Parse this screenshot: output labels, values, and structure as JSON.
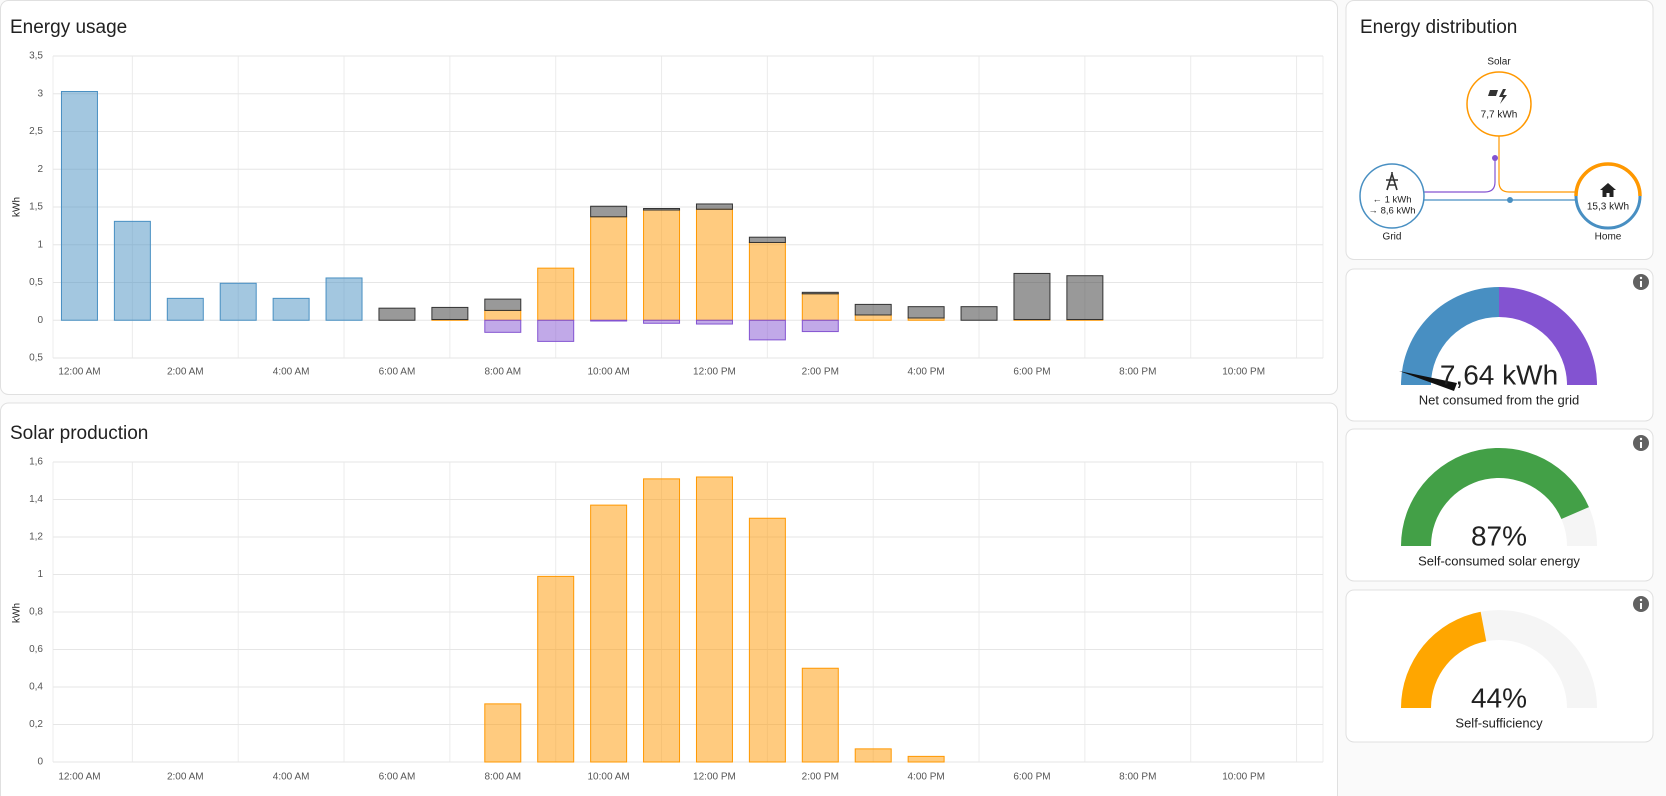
{
  "chart_data": [
    {
      "type": "bar",
      "title": "Energy usage",
      "y_label": "kWh",
      "categories": [
        "12:00 AM",
        null,
        "2:00 AM",
        null,
        "4:00 AM",
        null,
        "6:00 AM",
        null,
        "8:00 AM",
        null,
        "10:00 AM",
        null,
        "12:00 PM",
        null,
        "2:00 PM",
        null,
        "4:00 PM",
        null,
        "6:00 PM",
        null,
        "8:00 PM",
        null,
        "10:00 PM",
        null
      ],
      "series": [
        {
          "color": "#488fc2",
          "values": [
            3.03,
            1.31,
            0.29,
            0.49,
            0.29,
            0.56,
            0,
            0,
            0,
            0,
            0,
            0,
            0,
            0,
            0,
            0,
            0,
            0,
            0,
            0,
            0,
            0,
            0,
            0
          ]
        },
        {
          "color": "#ff9800",
          "values": [
            0,
            0,
            0,
            0,
            0,
            0,
            0,
            0.01,
            0.13,
            0.69,
            1.37,
            1.46,
            1.47,
            1.03,
            0.35,
            0.07,
            0.03,
            0,
            0.01,
            0.01,
            0,
            0,
            0,
            0
          ]
        },
        {
          "color": "#333333",
          "values": [
            0,
            0,
            0,
            0,
            0,
            0,
            0.16,
            0.16,
            0.15,
            0,
            0.14,
            0.02,
            0.07,
            0.07,
            0.02,
            0.14,
            0.15,
            0.18,
            0.61,
            0.58,
            0,
            0,
            0,
            0
          ]
        },
        {
          "color": "#8353d1",
          "values": [
            0,
            0,
            0,
            0,
            0,
            0,
            0,
            0,
            -0.16,
            -0.28,
            -0.01,
            -0.04,
            -0.05,
            -0.26,
            -0.15,
            0,
            0,
            0,
            0,
            0,
            0,
            0,
            0,
            0
          ]
        }
      ],
      "ylim": [
        -0.5,
        3.5
      ],
      "yticks": [
        {
          "value": 3.5,
          "label": "3,5"
        },
        3,
        {
          "value": 2.5,
          "label": "2,5"
        },
        2,
        {
          "value": 1.5,
          "label": "1,5"
        },
        1,
        {
          "value": 0.5,
          "label": "0,5"
        },
        0,
        {
          "value": -0.5,
          "label": "0,5"
        }
      ],
      "grid": true
    },
    {
      "type": "bar",
      "title": "Solar production",
      "y_label": "kWh",
      "categories": [
        "12:00 AM",
        null,
        "2:00 AM",
        null,
        "4:00 AM",
        null,
        "6:00 AM",
        null,
        "8:00 AM",
        null,
        "10:00 AM",
        null,
        "12:00 PM",
        null,
        "2:00 PM",
        null,
        "4:00 PM",
        null,
        "6:00 PM",
        null,
        "8:00 PM",
        null,
        "10:00 PM",
        null
      ],
      "values": [
        0,
        0,
        0,
        0,
        0,
        0,
        0,
        0,
        0.31,
        0.99,
        1.37,
        1.51,
        1.52,
        1.3,
        0.5,
        0.07,
        0.03,
        0,
        0,
        0,
        0,
        0,
        0,
        0
      ],
      "color": "#ff9800",
      "ylim": [
        0,
        1.6
      ],
      "yticks": [
        {
          "value": 1.6,
          "label": "1,6"
        },
        {
          "value": 1.4,
          "label": "1,4"
        },
        {
          "value": 1.2,
          "label": "1,2"
        },
        1,
        {
          "value": 0.8,
          "label": "0,8"
        },
        {
          "value": 0.6,
          "label": "0,6"
        },
        {
          "value": 0.4,
          "label": "0,4"
        },
        {
          "value": 0.2,
          "label": "0,2"
        },
        0
      ],
      "grid": true
    }
  ],
  "distribution": {
    "title": "Energy distribution",
    "solar": {
      "label": "Solar",
      "value": "7,7 kWh"
    },
    "grid": {
      "label": "Grid",
      "from": "← 1 kWh",
      "to": "→ 8,6 kWh"
    },
    "home": {
      "label": "Home",
      "value": "15,3 kWh"
    }
  },
  "gauges": [
    {
      "value_label": "7,64 kWh",
      "label": "Net consumed from the grid"
    },
    {
      "value": 87,
      "value_label": "87%",
      "label": "Self-consumed solar energy",
      "color": "#43a047",
      "range": [
        0,
        100
      ]
    },
    {
      "value": 44,
      "value_label": "44%",
      "label": "Self-sufficiency",
      "color": "#ffa600",
      "range": [
        0,
        100
      ]
    }
  ]
}
